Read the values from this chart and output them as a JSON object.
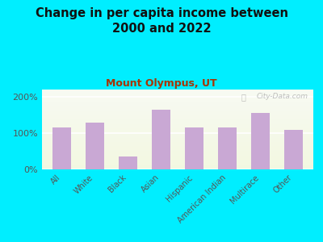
{
  "title": "Change in per capita income between\n2000 and 2022",
  "subtitle": "Mount Olympus, UT",
  "categories": [
    "All",
    "White",
    "Black",
    "Asian",
    "Hispanic",
    "American Indian",
    "Multirace",
    "Other"
  ],
  "values": [
    115,
    130,
    35,
    165,
    115,
    115,
    155,
    108
  ],
  "bar_color": "#c9a8d4",
  "background_outer": "#00eeff",
  "title_color": "#111111",
  "subtitle_color": "#aa3300",
  "tick_label_color": "#555555",
  "watermark": "City-Data.com",
  "ylim": [
    0,
    220
  ],
  "ytick_labels": [
    "0%",
    "100%",
    "200%"
  ],
  "ytick_values": [
    0,
    100,
    200
  ]
}
